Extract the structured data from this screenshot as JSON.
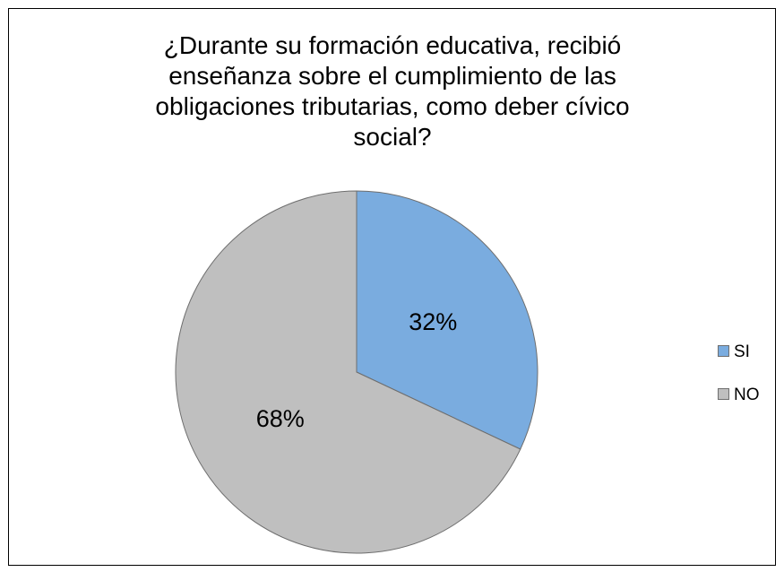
{
  "chart_data": {
    "type": "pie",
    "title": "¿Durante su formación educativa, recibió enseñanza sobre el cumplimiento de las obligaciones tributarias, como deber cívico social?",
    "categories": [
      "SI",
      "NO"
    ],
    "values": [
      32,
      68
    ],
    "value_labels": [
      "32%",
      "68%"
    ],
    "colors": [
      "#7aacdf",
      "#bfbfbf"
    ],
    "legend": "right"
  }
}
